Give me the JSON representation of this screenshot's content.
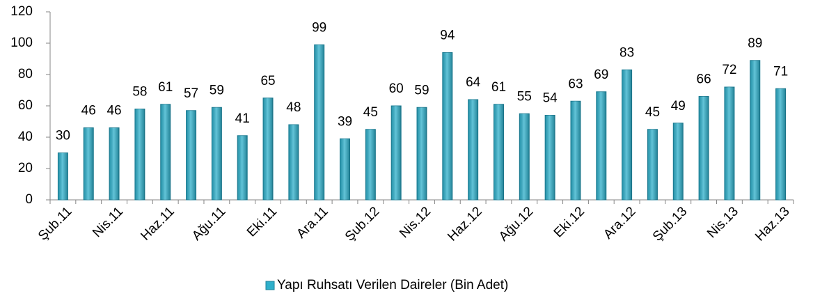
{
  "chart_data": {
    "type": "bar",
    "categories": [
      "Şub.11",
      null,
      "Nis.11",
      null,
      "Haz.11",
      null,
      "Ağu.11",
      null,
      "Eki.11",
      null,
      "Ara.11",
      null,
      "Şub.12",
      null,
      "Nis.12",
      null,
      "Haz.12",
      null,
      "Ağu.12",
      null,
      "Eki.12",
      null,
      "Ara.12",
      null,
      "Şub.13",
      null,
      "Nis.13",
      null,
      "Haz.13"
    ],
    "series": [
      {
        "name": "Yapı Ruhsatı Verilen Daireler (Bin Adet)",
        "color": "#2fb0cb",
        "values": [
          30,
          46,
          46,
          58,
          61,
          57,
          59,
          41,
          65,
          48,
          99,
          39,
          45,
          60,
          59,
          94,
          64,
          61,
          55,
          54,
          63,
          69,
          83,
          45,
          49,
          66,
          72,
          89,
          71
        ]
      }
    ],
    "ylim": [
      0,
      120
    ],
    "yticks": [
      0,
      20,
      40,
      60,
      80,
      100,
      120
    ],
    "grid": false,
    "legend": "bottom"
  }
}
